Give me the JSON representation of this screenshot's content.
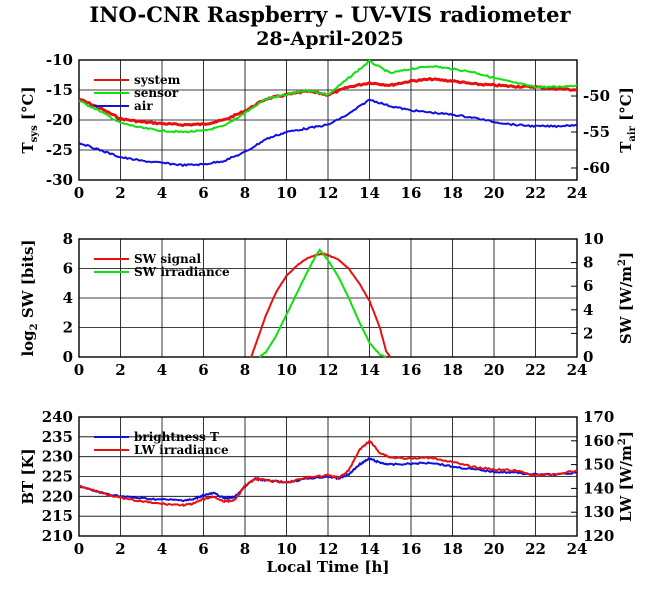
{
  "title": "INO-CNR Raspberry - UV-VIS radiometer",
  "subtitle": "28-April-2025",
  "xlabel": "Local Time [h]",
  "colors": {
    "red": "#e81010",
    "green": "#10e010",
    "blue": "#1010e0",
    "grid": "#000000"
  },
  "chart_data": [
    {
      "type": "line",
      "panel": "temperatures",
      "xlim": [
        0,
        24
      ],
      "xticks": [
        "0",
        "2",
        "4",
        "6",
        "8",
        "10",
        "12",
        "14",
        "16",
        "18",
        "20",
        "22",
        "24"
      ],
      "ylim_left": [
        -30,
        -10
      ],
      "yticks_left": [
        "-30",
        "-25",
        "-20",
        "-15",
        "-10"
      ],
      "ylabel_left": "T",
      "ylabel_left_sub": "sys",
      "ylabel_left_unit": " [°C]",
      "ylim_right": [
        -61.67,
        -45
      ],
      "yticks_right_values": [
        -60,
        -55,
        -50
      ],
      "yticks_right": [
        "-60",
        "-55",
        "-50"
      ],
      "ylabel_right": "T",
      "ylabel_right_sub": "air",
      "ylabel_right_unit": " [°C]",
      "series": [
        {
          "name": "system",
          "axis": "left",
          "color": "#e81010",
          "x": [
            0,
            1,
            2,
            3,
            4,
            5,
            6,
            7,
            8,
            9,
            10,
            11,
            12,
            13,
            14,
            15,
            16,
            17,
            18,
            19,
            20,
            21,
            22,
            23,
            24
          ],
          "y": [
            -16.5,
            -18,
            -19.8,
            -20.3,
            -20.6,
            -20.8,
            -20.7,
            -20,
            -18.5,
            -16.5,
            -15.8,
            -15.2,
            -15.8,
            -14.5,
            -13.8,
            -14.2,
            -13.5,
            -13.2,
            -13.5,
            -14,
            -14.2,
            -14.4,
            -14.5,
            -14.8,
            -15
          ]
        },
        {
          "name": "sensor",
          "axis": "left",
          "color": "#10e010",
          "x": [
            0,
            1,
            2,
            3,
            4,
            5,
            6,
            7,
            8,
            9,
            10,
            11,
            12,
            13,
            14,
            15,
            16,
            17,
            18,
            19,
            20,
            21,
            22,
            23,
            24
          ],
          "y": [
            -16.8,
            -18.5,
            -20.5,
            -21.3,
            -21.8,
            -22,
            -21.8,
            -21,
            -18.8,
            -16.5,
            -15.8,
            -15,
            -15.8,
            -13,
            -10.2,
            -12.2,
            -11.5,
            -11,
            -11.5,
            -12,
            -13,
            -13.8,
            -14.5,
            -14.5,
            -14.2
          ]
        },
        {
          "name": "air",
          "axis": "right",
          "color": "#1010e0",
          "x": [
            0,
            1,
            2,
            3,
            4,
            5,
            6,
            7,
            8,
            9,
            10,
            11,
            12,
            13,
            14,
            15,
            16,
            17,
            18,
            19,
            20,
            21,
            22,
            23,
            24
          ],
          "y": [
            -56.5,
            -57.5,
            -58.5,
            -59,
            -59.3,
            -59.6,
            -59.5,
            -59,
            -57.8,
            -56,
            -55,
            -54.5,
            -54,
            -52.5,
            -50.5,
            -51.4,
            -52,
            -52.3,
            -52.6,
            -53,
            -53.6,
            -54,
            -54.2,
            -54.2,
            -54
          ]
        }
      ]
    },
    {
      "type": "line",
      "panel": "shortwave",
      "xlim": [
        0,
        24
      ],
      "xticks": [
        "0",
        "2",
        "4",
        "6",
        "8",
        "10",
        "12",
        "14",
        "16",
        "18",
        "20",
        "22",
        "24"
      ],
      "ylim_left": [
        0,
        8
      ],
      "yticks_left": [
        "0",
        "2",
        "4",
        "6",
        "8"
      ],
      "ylabel_left": "log",
      "ylabel_left_sub": "2",
      "ylabel_left_unit": " SW [bits]",
      "ylim_right": [
        0,
        10
      ],
      "yticks_right_values": [
        0,
        2,
        4,
        6,
        8,
        10
      ],
      "yticks_right": [
        "0",
        "2",
        "4",
        "6",
        "8",
        "10"
      ],
      "ylabel_right": "SW [W/m",
      "ylabel_right_sup": "2",
      "ylabel_right_unit": "]",
      "series": [
        {
          "name": "SW signal",
          "axis": "left",
          "color": "#e81010",
          "x": [
            8.3,
            8.5,
            9,
            9.5,
            10,
            10.5,
            11,
            11.5,
            11.8,
            12,
            12.5,
            13,
            13.5,
            14,
            14.5,
            14.8,
            15
          ],
          "y": [
            0,
            0.8,
            2.8,
            4.4,
            5.5,
            6.2,
            6.7,
            6.95,
            7.0,
            6.9,
            6.6,
            6.0,
            5.0,
            3.8,
            2.0,
            0.4,
            0
          ]
        },
        {
          "name": "SW irradiance",
          "axis": "right",
          "color": "#10e010",
          "x": [
            8.7,
            9,
            9.5,
            10,
            10.5,
            11,
            11.3,
            11.6,
            12,
            12.5,
            13,
            13.5,
            14,
            14.5,
            14.8
          ],
          "y": [
            0,
            0.4,
            1.8,
            3.6,
            5.4,
            7.2,
            8.2,
            9.1,
            8.2,
            6.8,
            5.0,
            3.0,
            1.2,
            0.2,
            0
          ]
        }
      ]
    },
    {
      "type": "line",
      "panel": "longwave",
      "xlim": [
        0,
        24
      ],
      "xticks": [
        "0",
        "2",
        "4",
        "6",
        "8",
        "10",
        "12",
        "14",
        "16",
        "18",
        "20",
        "22",
        "24"
      ],
      "ylim_left": [
        210,
        240
      ],
      "yticks_left": [
        "210",
        "215",
        "220",
        "225",
        "230",
        "235",
        "240"
      ],
      "ylabel_left": "BT [K]",
      "ylim_right": [
        120,
        170
      ],
      "yticks_right_values": [
        120,
        130,
        140,
        150,
        160,
        170
      ],
      "yticks_right": [
        "120",
        "130",
        "140",
        "150",
        "160",
        "170"
      ],
      "ylabel_right": "LW [W/m",
      "ylabel_right_sup": "2",
      "ylabel_right_unit": "]",
      "series": [
        {
          "name": "brightness T",
          "axis": "left",
          "color": "#1010e0",
          "x": [
            0,
            1,
            2,
            3,
            4,
            5,
            5.5,
            6,
            6.5,
            7,
            7.5,
            8,
            8.5,
            9,
            10,
            11,
            12,
            12.5,
            13,
            13.5,
            14,
            14.5,
            15,
            16,
            17,
            18,
            19,
            20,
            21,
            22,
            23,
            24
          ],
          "y": [
            222.5,
            221,
            220,
            219.5,
            219.2,
            219,
            219.2,
            220.3,
            220.8,
            219.5,
            219.8,
            222.5,
            224.5,
            224,
            223.5,
            224.5,
            225,
            224.5,
            225.5,
            228,
            229.5,
            228.5,
            228,
            228.2,
            228.5,
            227.5,
            226.8,
            226.2,
            226,
            225.5,
            225.5,
            226
          ]
        },
        {
          "name": "LW irradiance",
          "axis": "right",
          "color": "#e81010",
          "x": [
            0,
            1,
            2,
            3,
            4,
            5,
            5.5,
            6,
            6.5,
            7,
            7.5,
            8,
            8.5,
            9,
            10,
            11,
            12,
            12.5,
            13,
            13.5,
            14,
            14.5,
            15,
            16,
            17,
            18,
            19,
            20,
            21,
            22,
            23,
            24
          ],
          "y": [
            141,
            138.5,
            136,
            134.5,
            133.5,
            133,
            133.5,
            135.5,
            136.5,
            134.5,
            135,
            141,
            144,
            143.5,
            142.5,
            144.5,
            145.5,
            144.5,
            147.5,
            156,
            160,
            155,
            153,
            152.5,
            153,
            151,
            149,
            148,
            147.5,
            145.5,
            146,
            147.5
          ]
        }
      ]
    }
  ]
}
